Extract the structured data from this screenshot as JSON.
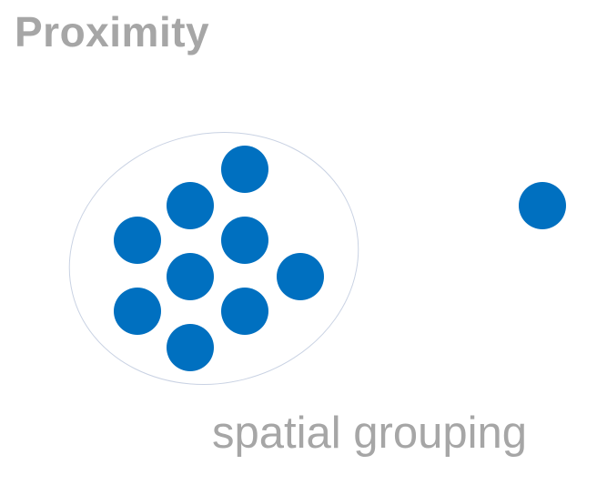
{
  "title": "Proximity",
  "caption": "spatial grouping",
  "colors": {
    "dot": "#0070c0",
    "outline": "#c9d2e3",
    "text": "#a6a6a6"
  },
  "group": {
    "dot_count": 9
  },
  "outlier": {
    "dot_count": 1
  }
}
